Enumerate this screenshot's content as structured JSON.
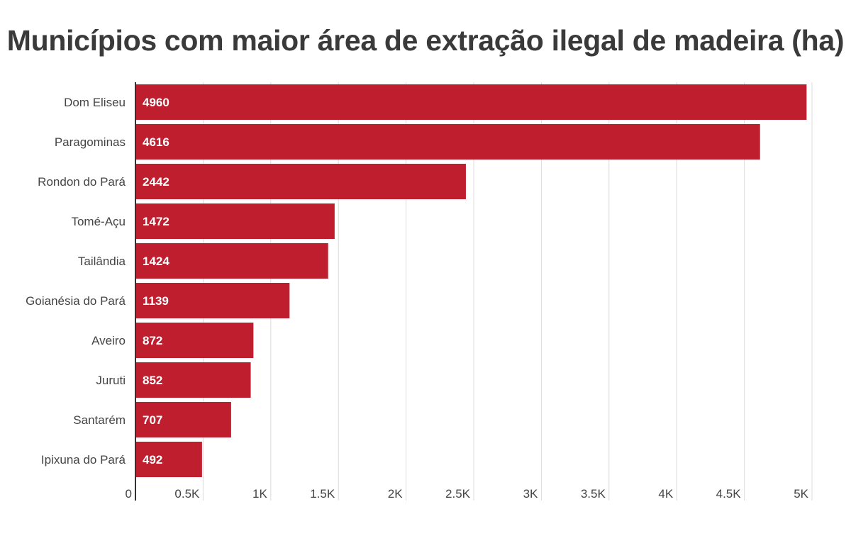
{
  "chart_data": {
    "type": "bar",
    "orientation": "horizontal",
    "title": "Municípios com maior área de extração ilegal de madeira (ha)",
    "categories": [
      "Dom Eliseu",
      "Paragominas",
      "Rondon do Pará",
      "Tomé-Açu",
      "Tailândia",
      "Goianésia do Pará",
      "Aveiro",
      "Juruti",
      "Santarém",
      "Ipixuna do Pará"
    ],
    "values": [
      4960,
      4616,
      2442,
      1472,
      1424,
      1139,
      872,
      852,
      707,
      492
    ],
    "xlim": [
      0,
      5000
    ],
    "xticks": [
      0,
      500,
      1000,
      1500,
      2000,
      2500,
      3000,
      3500,
      4000,
      4500,
      5000
    ],
    "xtick_labels": [
      "0",
      "0.5K",
      "1K",
      "1.5K",
      "2K",
      "2.5K",
      "3K",
      "3.5K",
      "4K",
      "4.5K",
      "5K"
    ],
    "grid": true,
    "bar_color": "#be1e2d",
    "xlabel": "",
    "ylabel": ""
  }
}
